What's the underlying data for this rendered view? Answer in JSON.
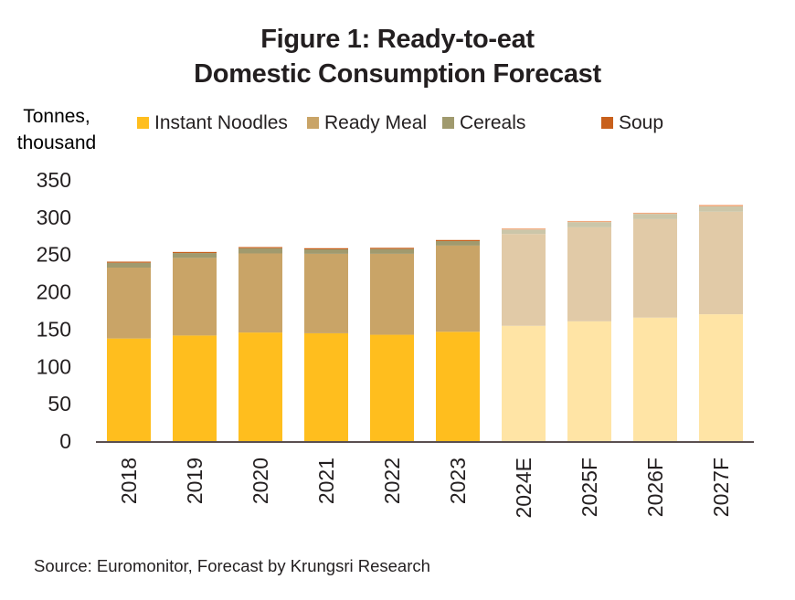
{
  "chart_data": {
    "type": "bar",
    "stacked": true,
    "title": [
      "Figure 1: Ready-to-eat",
      "Domestic Consumption Forecast"
    ],
    "ylabel": "Tonnes, thousand",
    "xlabel": "",
    "ylim": [
      0,
      350
    ],
    "yticks": [
      0,
      50,
      100,
      150,
      200,
      250,
      300,
      350
    ],
    "grid": false,
    "legend_position": "top",
    "categories": [
      "2018",
      "2019",
      "2020",
      "2021",
      "2022",
      "2023",
      "2024E",
      "2025F",
      "2026F",
      "2027F"
    ],
    "forecast_from_index": 6,
    "series": [
      {
        "name": "Instant Noodles",
        "color": "#FFBE1E",
        "forecast_color": "#FFE4A5",
        "values": [
          137.5,
          141.5,
          145.5,
          144.5,
          142.5,
          146.5,
          154.5,
          160.5,
          165.5,
          170
        ]
      },
      {
        "name": "Ready Meal",
        "color": "#C9A467",
        "forecast_color": "#E1CAA7",
        "values": [
          95,
          104,
          106,
          106.5,
          108.5,
          115.5,
          123,
          126,
          132,
          137.5
        ]
      },
      {
        "name": "Cereals",
        "color": "#A09A6E",
        "forecast_color": "#CBC6A9",
        "values": [
          6.5,
          6.5,
          7,
          6,
          6.5,
          6,
          6,
          7,
          7,
          7
        ]
      },
      {
        "name": "Soup",
        "color": "#C8601C",
        "forecast_color": "#F2AA7E",
        "values": [
          1.5,
          1.5,
          1.5,
          1.5,
          1.5,
          1.5,
          1.5,
          1.5,
          1.5,
          2
        ]
      }
    ],
    "source": "Source: Euromonitor, Forecast by Krungsri Research"
  }
}
